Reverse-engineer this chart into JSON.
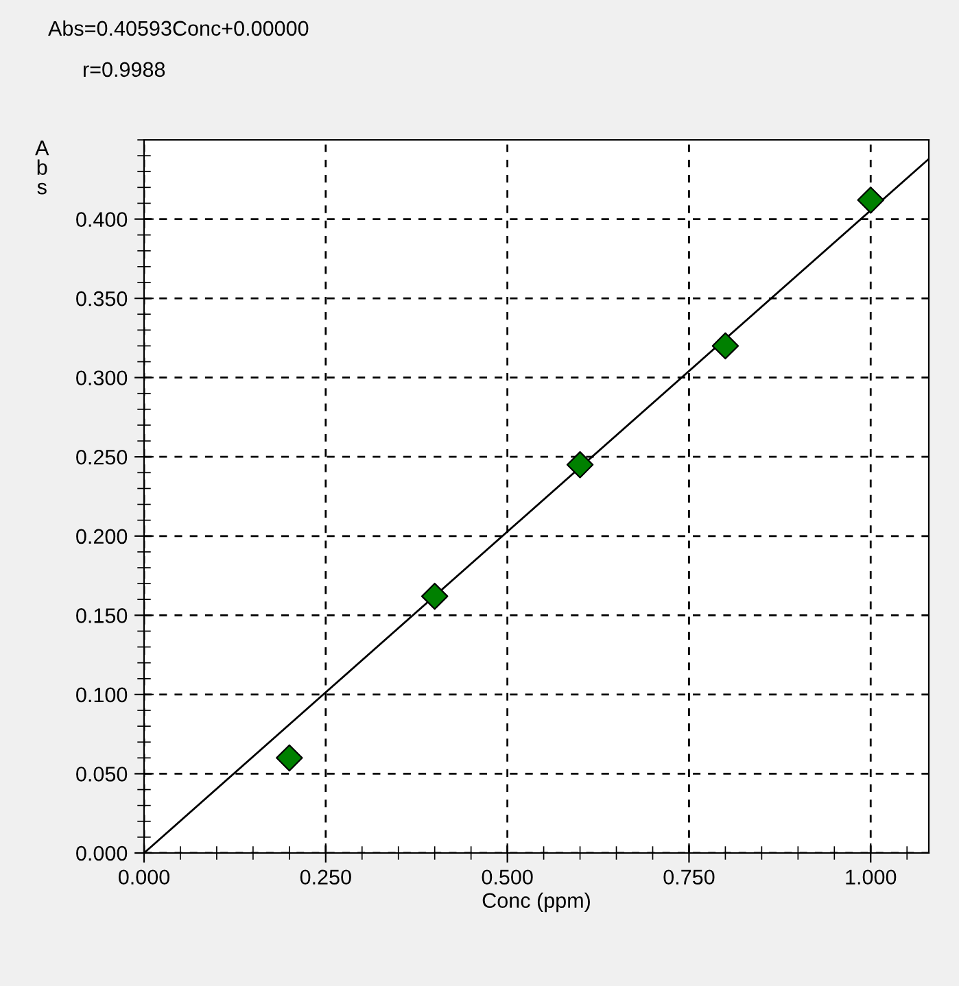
{
  "chart_data": {
    "type": "scatter",
    "xlabel": "Conc (ppm)",
    "ylabel": "Abs",
    "annotations": [
      "Abs=0.40593Conc+0.00000",
      "r=0.9988"
    ],
    "x": [
      0.2,
      0.4,
      0.6,
      0.8,
      1.0
    ],
    "series": [
      {
        "color": "#008000",
        "marker": "diamond",
        "values": [
          0.06,
          0.162,
          0.245,
          0.32,
          0.412
        ]
      },
      {
        "type": "line",
        "color": "#000000",
        "x": [
          0,
          1.08
        ],
        "values": [
          0,
          0.438
        ],
        "line_style": "solid"
      }
    ],
    "xlim": [
      0,
      1.08
    ],
    "ylim": [
      0,
      0.45
    ],
    "xticks": [
      {
        "value": 0,
        "label": "0.000"
      },
      {
        "value": 0.25,
        "label": "0.250"
      },
      {
        "value": 0.5,
        "label": "0.500"
      },
      {
        "value": 0.75,
        "label": "0.750"
      },
      {
        "value": 1.0,
        "label": "1.000"
      }
    ],
    "yticks": [
      {
        "value": 0,
        "label": "0.000"
      },
      {
        "value": 0.05,
        "label": "0.050"
      },
      {
        "value": 0.1,
        "label": "0.100"
      },
      {
        "value": 0.15,
        "label": "0.150"
      },
      {
        "value": 0.2,
        "label": "0.200"
      },
      {
        "value": 0.25,
        "label": "0.250"
      },
      {
        "value": 0.3,
        "label": "0.300"
      },
      {
        "value": 0.35,
        "label": "0.350"
      },
      {
        "value": 0.4,
        "label": "0.400"
      }
    ],
    "grid": true,
    "legend": false
  }
}
